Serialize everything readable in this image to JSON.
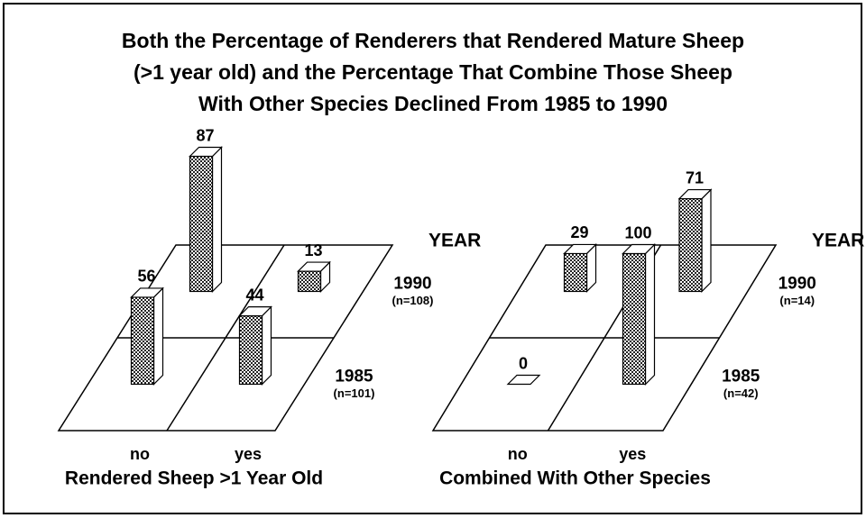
{
  "title": [
    "Both the Percentage of Renderers that Rendered Mature Sheep",
    "(>1 year old) and the Percentage That Combine Those Sheep",
    "With Other Species Declined From 1985 to 1990"
  ],
  "chart_data": [
    {
      "type": "bar3d",
      "xlabel": "Rendered Sheep >1 Year Old",
      "categories": [
        "no",
        "yes"
      ],
      "depth_label": "YEAR",
      "color": "#333333",
      "series": [
        {
          "name": "1985",
          "sample": "(n=101)",
          "values": [
            56,
            44
          ]
        },
        {
          "name": "1990",
          "sample": "(n=108)",
          "values": [
            87,
            13
          ]
        }
      ]
    },
    {
      "type": "bar3d",
      "xlabel": "Combined With Other Species",
      "categories": [
        "no",
        "yes"
      ],
      "depth_label": "YEAR",
      "color": "#333333",
      "series": [
        {
          "name": "1985",
          "sample": "(n=42)",
          "values": [
            0,
            100
          ]
        },
        {
          "name": "1990",
          "sample": "(n=14)",
          "values": [
            29,
            71
          ]
        }
      ]
    }
  ]
}
